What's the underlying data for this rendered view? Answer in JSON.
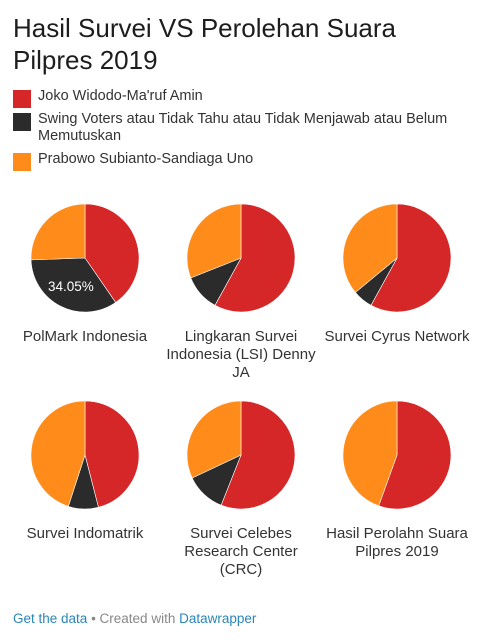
{
  "title": "Hasil Survei VS Perolehan Suara Pilpres 2019",
  "legend": [
    {
      "label": "Joko Widodo-Ma'ruf Amin",
      "color": "#d62728"
    },
    {
      "label": "Swing Voters atau Tidak Tahu atau Tidak Menjawab atau Belum Memutuskan",
      "color": "#2b2b2b"
    },
    {
      "label": "Prabowo Subianto-Sandiaga Uno",
      "color": "#ff8c1a"
    }
  ],
  "chart_data": [
    {
      "type": "pie",
      "title": "PolMark Indonesia",
      "slices": [
        {
          "name": "Joko Widodo-Ma'ruf Amin",
          "value": 40.4
        },
        {
          "name": "Swing Voters",
          "value": 34.05
        },
        {
          "name": "Prabowo Subianto-Sandiaga Uno",
          "value": 25.55
        }
      ],
      "data_label": "34.05%"
    },
    {
      "type": "pie",
      "title": "Lingkaran Survei Indonesia (LSI) Denny JA",
      "slices": [
        {
          "name": "Joko Widodo-Ma'ruf Amin",
          "value": 58.0
        },
        {
          "name": "Swing Voters",
          "value": 11.0
        },
        {
          "name": "Prabowo Subianto-Sandiaga Uno",
          "value": 31.0
        }
      ]
    },
    {
      "type": "pie",
      "title": "Survei Cyrus Network",
      "slices": [
        {
          "name": "Joko Widodo-Ma'ruf Amin",
          "value": 58.0
        },
        {
          "name": "Swing Voters",
          "value": 6.0
        },
        {
          "name": "Prabowo Subianto-Sandiaga Uno",
          "value": 36.0
        }
      ]
    },
    {
      "type": "pie",
      "title": "Survei Indomatrik",
      "slices": [
        {
          "name": "Joko Widodo-Ma'ruf Amin",
          "value": 46.0
        },
        {
          "name": "Swing Voters",
          "value": 9.0
        },
        {
          "name": "Prabowo Subianto-Sandiaga Uno",
          "value": 45.0
        }
      ]
    },
    {
      "type": "pie",
      "title": "Survei Celebes Research Center (CRC)",
      "slices": [
        {
          "name": "Joko Widodo-Ma'ruf Amin",
          "value": 56.0
        },
        {
          "name": "Swing Voters",
          "value": 12.0
        },
        {
          "name": "Prabowo Subianto-Sandiaga Uno",
          "value": 32.0
        }
      ]
    },
    {
      "type": "pie",
      "title": "Hasil Perolahn Suara Pilpres 2019",
      "slices": [
        {
          "name": "Joko Widodo-Ma'ruf Amin",
          "value": 55.5
        },
        {
          "name": "Swing Voters",
          "value": 0
        },
        {
          "name": "Prabowo Subianto-Sandiaga Uno",
          "value": 44.5
        }
      ]
    }
  ],
  "footer": {
    "get_data": "Get the data",
    "separator": " • Created with ",
    "tool": "Datawrapper"
  }
}
